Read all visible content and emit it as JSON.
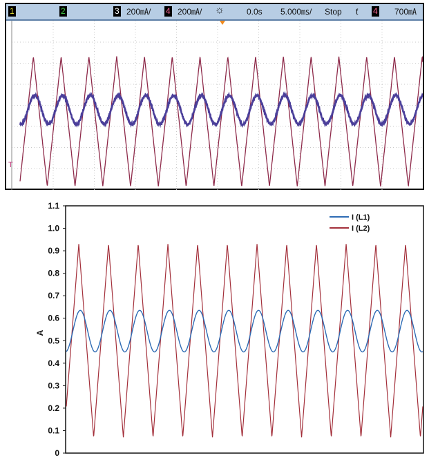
{
  "oscilloscope": {
    "channels": [
      {
        "label": "1",
        "color": "#e8e43a"
      },
      {
        "label": "2",
        "color": "#45d24a"
      },
      {
        "label": "3",
        "color": "#4a7cff",
        "scale": "200㎃/"
      },
      {
        "label": "4",
        "color": "#d63a6a",
        "scale": "200㎃/"
      }
    ],
    "delay": "0.0s",
    "timebase": "5.000㎳/",
    "run_state": "Stop",
    "trigger_symbol": "ƭ",
    "trigger_channel": "4",
    "trigger_level": "700㎃",
    "trigger_marker": "T",
    "colors": {
      "bar_bg": "#b7cde4",
      "trace_ch3": "#4b3f9a",
      "trace_ch4": "#8e2a4a",
      "grid": "#c8c8c8"
    }
  },
  "chart_data": {
    "type": "line",
    "xlabel": "",
    "ylabel": "A",
    "ylim": [
      0,
      1.1
    ],
    "yticks": [
      "0",
      "0.1",
      "0.2",
      "0.3",
      "0.4",
      "0.5",
      "0.6",
      "0.7",
      "0.8",
      "0.9",
      "1.0",
      "1.1"
    ],
    "legend_position": "top-right",
    "grid": false,
    "series": [
      {
        "name": "I (L1)",
        "color": "#2e6bb4",
        "shape": "sine",
        "min": 0.45,
        "max": 0.635,
        "cycles": 12
      },
      {
        "name": "I (L2)",
        "color": "#a32f3a",
        "shape": "triangle",
        "min": 0.07,
        "max": 0.93,
        "cycles": 12
      }
    ]
  }
}
